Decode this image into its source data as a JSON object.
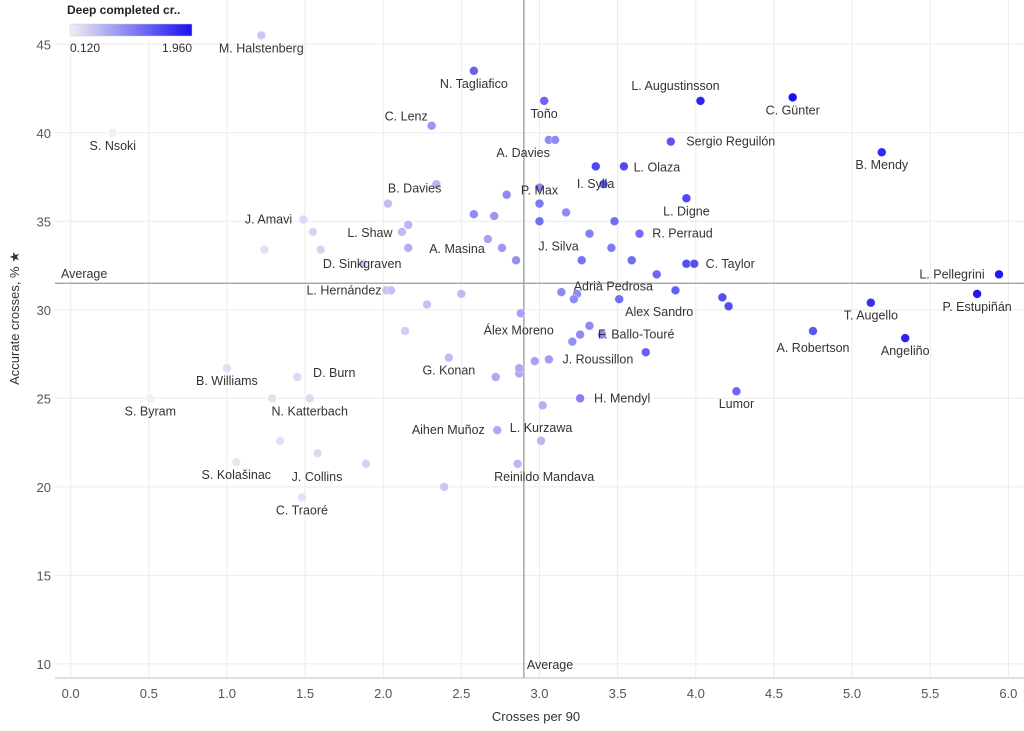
{
  "chart_data": {
    "type": "scatter",
    "xlabel": "Crosses per 90",
    "ylabel": "Accurate crosses, % ★",
    "xlim": [
      -0.1,
      6.1
    ],
    "ylim": [
      9.2,
      47.5
    ],
    "x_ticks": [
      "0.0",
      "0.5",
      "1.0",
      "1.5",
      "2.0",
      "2.5",
      "3.0",
      "3.5",
      "4.0",
      "4.5",
      "5.0",
      "5.5",
      "6.0"
    ],
    "x_tick_values": [
      0,
      0.5,
      1,
      1.5,
      2,
      2.5,
      3,
      3.5,
      4,
      4.5,
      5,
      5.5,
      6
    ],
    "y_ticks": [
      "10",
      "15",
      "20",
      "25",
      "30",
      "35",
      "40",
      "45"
    ],
    "y_tick_values": [
      10,
      15,
      20,
      25,
      30,
      35,
      40,
      45
    ],
    "grid": true,
    "avg_x": 2.9,
    "avg_y": 31.5,
    "avg_x_label": "Average",
    "avg_y_label": "Average",
    "legend": {
      "title": "Deep completed cr..",
      "min_label": "0.120",
      "max_label": "1.960",
      "min": 0.12,
      "max": 1.96,
      "color_low": "#f0f0f4",
      "color_high": "#1a10f0",
      "placement": "top-left"
    },
    "points": [
      {
        "x": 1.22,
        "y": 45.5,
        "c": 0.45,
        "label": "M. Halstenberg"
      },
      {
        "x": 0.27,
        "y": 40.0,
        "c": 0.12,
        "label": "S. Nsoki"
      },
      {
        "x": 2.58,
        "y": 43.5,
        "c": 1.3,
        "label": "N. Tagliafico"
      },
      {
        "x": 3.03,
        "y": 41.8,
        "c": 1.25,
        "label": "Toño"
      },
      {
        "x": 2.31,
        "y": 40.4,
        "c": 0.85,
        "label": "C. Lenz"
      },
      {
        "x": 4.03,
        "y": 41.8,
        "c": 1.8,
        "label": "L. Augustinsson"
      },
      {
        "x": 4.62,
        "y": 42.0,
        "c": 1.95,
        "label": "C. Günter"
      },
      {
        "x": 3.06,
        "y": 39.6,
        "c": 0.95,
        "label": ""
      },
      {
        "x": 3.1,
        "y": 39.6,
        "c": 0.95,
        "label": "A. Davies"
      },
      {
        "x": 3.84,
        "y": 39.5,
        "c": 1.4,
        "label": "Sergio Reguilón"
      },
      {
        "x": 5.19,
        "y": 38.9,
        "c": 1.75,
        "label": "B. Mendy"
      },
      {
        "x": 3.36,
        "y": 38.1,
        "c": 1.5,
        "label": ""
      },
      {
        "x": 3.54,
        "y": 38.1,
        "c": 1.5,
        "label": "L. Olaza"
      },
      {
        "x": 2.34,
        "y": 37.1,
        "c": 0.6,
        "label": ""
      },
      {
        "x": 3.41,
        "y": 37.1,
        "c": 1.35,
        "label": "I. Sylla"
      },
      {
        "x": 3.0,
        "y": 36.9,
        "c": 1.0,
        "label": ""
      },
      {
        "x": 2.79,
        "y": 36.5,
        "c": 0.95,
        "label": ""
      },
      {
        "x": 2.03,
        "y": 36.0,
        "c": 0.55,
        "label": "B. Davies"
      },
      {
        "x": 3.94,
        "y": 36.3,
        "c": 1.5,
        "label": "L. Digne"
      },
      {
        "x": 3.0,
        "y": 36.0,
        "c": 1.1,
        "label": "P. Max"
      },
      {
        "x": 2.58,
        "y": 35.4,
        "c": 0.95,
        "label": ""
      },
      {
        "x": 2.71,
        "y": 35.3,
        "c": 0.85,
        "label": ""
      },
      {
        "x": 3.17,
        "y": 35.5,
        "c": 0.95,
        "label": ""
      },
      {
        "x": 1.49,
        "y": 35.1,
        "c": 0.3,
        "label": "J. Amavi"
      },
      {
        "x": 2.16,
        "y": 34.8,
        "c": 0.6,
        "label": ""
      },
      {
        "x": 3.0,
        "y": 35.0,
        "c": 1.2,
        "label": ""
      },
      {
        "x": 3.48,
        "y": 35.0,
        "c": 1.2,
        "label": ""
      },
      {
        "x": 1.55,
        "y": 34.4,
        "c": 0.35,
        "label": ""
      },
      {
        "x": 2.12,
        "y": 34.4,
        "c": 0.55,
        "label": "L. Shaw"
      },
      {
        "x": 3.32,
        "y": 34.3,
        "c": 1.05,
        "label": "J. Silva"
      },
      {
        "x": 3.64,
        "y": 34.3,
        "c": 1.2,
        "label": "R. Perraud"
      },
      {
        "x": 2.67,
        "y": 34.0,
        "c": 0.75,
        "label": ""
      },
      {
        "x": 1.24,
        "y": 33.4,
        "c": 0.25,
        "label": ""
      },
      {
        "x": 1.6,
        "y": 33.4,
        "c": 0.35,
        "label": ""
      },
      {
        "x": 2.16,
        "y": 33.5,
        "c": 0.65,
        "label": ""
      },
      {
        "x": 2.76,
        "y": 33.5,
        "c": 0.85,
        "label": "A. Masina"
      },
      {
        "x": 3.46,
        "y": 33.5,
        "c": 1.1,
        "label": ""
      },
      {
        "x": 2.85,
        "y": 32.8,
        "c": 0.9,
        "label": ""
      },
      {
        "x": 3.27,
        "y": 32.8,
        "c": 1.15,
        "label": ""
      },
      {
        "x": 3.59,
        "y": 32.8,
        "c": 1.2,
        "label": ""
      },
      {
        "x": 3.94,
        "y": 32.6,
        "c": 1.45,
        "label": ""
      },
      {
        "x": 3.99,
        "y": 32.6,
        "c": 1.45,
        "label": "C. Taylor"
      },
      {
        "x": 1.87,
        "y": 32.6,
        "c": 0.4,
        "label": "D. Sinkgraven"
      },
      {
        "x": 3.75,
        "y": 32.0,
        "c": 1.25,
        "label": "Adrià Pedrosa"
      },
      {
        "x": 2.02,
        "y": 31.1,
        "c": 0.5,
        "label": ""
      },
      {
        "x": 2.05,
        "y": 31.1,
        "c": 0.5,
        "label": "L. Hernández"
      },
      {
        "x": 2.5,
        "y": 30.9,
        "c": 0.55,
        "label": ""
      },
      {
        "x": 3.14,
        "y": 31.0,
        "c": 0.95,
        "label": ""
      },
      {
        "x": 3.24,
        "y": 30.9,
        "c": 0.95,
        "label": ""
      },
      {
        "x": 3.22,
        "y": 30.6,
        "c": 0.95,
        "label": ""
      },
      {
        "x": 3.87,
        "y": 31.1,
        "c": 1.3,
        "label": ""
      },
      {
        "x": 3.51,
        "y": 30.6,
        "c": 1.2,
        "label": "Alex Sandro"
      },
      {
        "x": 4.17,
        "y": 30.7,
        "c": 1.45,
        "label": ""
      },
      {
        "x": 4.21,
        "y": 30.2,
        "c": 1.45,
        "label": ""
      },
      {
        "x": 5.12,
        "y": 30.4,
        "c": 1.7,
        "label": "T. Augello"
      },
      {
        "x": 5.94,
        "y": 32.0,
        "c": 1.9,
        "label": "L. Pellegrini"
      },
      {
        "x": 5.8,
        "y": 30.9,
        "c": 1.9,
        "label": "P. Estupiñán"
      },
      {
        "x": 2.28,
        "y": 30.3,
        "c": 0.5,
        "label": ""
      },
      {
        "x": 2.88,
        "y": 29.8,
        "c": 0.75,
        "label": "Álex Moreno"
      },
      {
        "x": 2.14,
        "y": 28.8,
        "c": 0.4,
        "label": ""
      },
      {
        "x": 3.32,
        "y": 29.1,
        "c": 0.95,
        "label": ""
      },
      {
        "x": 3.26,
        "y": 28.6,
        "c": 0.95,
        "label": ""
      },
      {
        "x": 3.4,
        "y": 28.6,
        "c": 0.95,
        "label": "F. Ballo-Touré"
      },
      {
        "x": 3.21,
        "y": 28.2,
        "c": 0.9,
        "label": ""
      },
      {
        "x": 4.75,
        "y": 28.8,
        "c": 1.4,
        "label": "A. Robertson"
      },
      {
        "x": 5.34,
        "y": 28.4,
        "c": 1.8,
        "label": "Angeliño"
      },
      {
        "x": 3.68,
        "y": 27.6,
        "c": 1.3,
        "label": ""
      },
      {
        "x": 2.42,
        "y": 27.3,
        "c": 0.55,
        "label": "G. Konan"
      },
      {
        "x": 2.97,
        "y": 27.1,
        "c": 0.75,
        "label": ""
      },
      {
        "x": 3.06,
        "y": 27.2,
        "c": 0.8,
        "label": "J. Roussillon"
      },
      {
        "x": 1.0,
        "y": 26.7,
        "c": 0.25,
        "label": "B. Williams"
      },
      {
        "x": 1.45,
        "y": 26.2,
        "c": 0.3,
        "label": "D. Burn"
      },
      {
        "x": 2.72,
        "y": 26.2,
        "c": 0.7,
        "label": ""
      },
      {
        "x": 2.87,
        "y": 26.4,
        "c": 0.7,
        "label": ""
      },
      {
        "x": 2.87,
        "y": 26.7,
        "c": 0.7,
        "label": ""
      },
      {
        "x": 4.26,
        "y": 25.4,
        "c": 1.25,
        "label": "Lumor"
      },
      {
        "x": 0.51,
        "y": 25.0,
        "c": 0.12,
        "label": "S. Byram"
      },
      {
        "x": 1.29,
        "y": 25.0,
        "c": 0.25,
        "label": ""
      },
      {
        "x": 1.53,
        "y": 25.0,
        "c": 0.3,
        "label": "N. Katterbach"
      },
      {
        "x": 3.26,
        "y": 25.0,
        "c": 1.05,
        "label": "H. Mendyl"
      },
      {
        "x": 3.02,
        "y": 24.6,
        "c": 0.65,
        "label": ""
      },
      {
        "x": 2.73,
        "y": 23.2,
        "c": 0.7,
        "label": "Aihen Muñoz"
      },
      {
        "x": 3.01,
        "y": 22.6,
        "c": 0.6,
        "label": "L. Kurzawa"
      },
      {
        "x": 1.34,
        "y": 22.6,
        "c": 0.25,
        "label": ""
      },
      {
        "x": 1.58,
        "y": 21.9,
        "c": 0.3,
        "label": ""
      },
      {
        "x": 1.06,
        "y": 21.4,
        "c": 0.2,
        "label": "S. Kolašinac"
      },
      {
        "x": 1.89,
        "y": 21.3,
        "c": 0.35,
        "label": "J. Collins"
      },
      {
        "x": 2.86,
        "y": 21.3,
        "c": 0.6,
        "label": ""
      },
      {
        "x": 2.39,
        "y": 20.0,
        "c": 0.45,
        "label": "Reinildo Mandava"
      },
      {
        "x": 1.48,
        "y": 19.4,
        "c": 0.25,
        "label": "C. Traoré"
      }
    ],
    "label_offsets": {
      "M. Halstenberg": [
        0,
        17,
        "middle"
      ],
      "S. Nsoki": [
        0,
        17,
        "middle"
      ],
      "N. Tagliafico": [
        0,
        17,
        "middle"
      ],
      "Toño": [
        0,
        17,
        "middle"
      ],
      "C. Lenz": [
        -47,
        -5,
        "start"
      ],
      "L. Augustinsson": [
        -25,
        -11,
        "middle"
      ],
      "C. Günter": [
        0,
        17,
        "middle"
      ],
      "A. Davies": [
        -32,
        17,
        "middle"
      ],
      "Sergio Reguilón": [
        60,
        4,
        "middle"
      ],
      "B. Mendy": [
        0,
        17,
        "middle"
      ],
      "L. Olaza": [
        33,
        5,
        "middle"
      ],
      "I. Sylla": [
        -8,
        4,
        "middle"
      ],
      "B. Davies": [
        0,
        -11,
        "start"
      ],
      "L. Digne": [
        0,
        17,
        "middle"
      ],
      "P. Max": [
        0,
        -9,
        "middle"
      ],
      "J. Amavi": [
        -35,
        4,
        "middle"
      ],
      "L. Shaw": [
        -32,
        5,
        "middle"
      ],
      "J. Silva": [
        -31,
        17,
        "middle"
      ],
      "R. Perraud": [
        43,
        4,
        "middle"
      ],
      "A. Masina": [
        -45,
        5,
        "middle"
      ],
      "C. Taylor": [
        36,
        4,
        "middle"
      ],
      "D. Sinkgraven": [
        -40,
        4,
        "start"
      ],
      "Adrià Pedrosa": [
        -83,
        16,
        "start"
      ],
      "L. Hernández": [
        -47,
        4,
        "middle"
      ],
      "Alex Sandro": [
        40,
        17,
        "middle"
      ],
      "T. Augello": [
        0,
        17,
        "middle"
      ],
      "L. Pellegrini": [
        -47,
        4,
        "middle"
      ],
      "P. Estupiñán": [
        0,
        17,
        "middle"
      ],
      "Álex Moreno": [
        -2,
        21,
        "middle"
      ],
      "F. Ballo-Touré": [
        -4,
        4,
        "start"
      ],
      "A. Robertson": [
        0,
        21,
        "middle"
      ],
      "Angeliño": [
        0,
        17,
        "middle"
      ],
      "G. Konan": [
        0,
        17,
        "middle"
      ],
      "J. Roussillon": [
        49,
        4,
        "middle"
      ],
      "B. Williams": [
        0,
        17,
        "middle"
      ],
      "D. Burn": [
        37,
        0,
        "middle"
      ],
      "Lumor": [
        0,
        17,
        "middle"
      ],
      "S. Byram": [
        0,
        17,
        "middle"
      ],
      "N. Katterbach": [
        0,
        17,
        "middle"
      ],
      "H. Mendyl": [
        42,
        4,
        "middle"
      ],
      "Aihen Muñoz": [
        -49,
        4,
        "middle"
      ],
      "L. Kurzawa": [
        0,
        -9,
        "middle"
      ],
      "S. Kolašinac": [
        0,
        17,
        "middle"
      ],
      "J. Collins": [
        -49,
        17,
        "middle"
      ],
      "Reinildo Mandava": [
        100,
        -6,
        "middle"
      ],
      "C. Traoré": [
        0,
        17,
        "middle"
      ]
    }
  }
}
